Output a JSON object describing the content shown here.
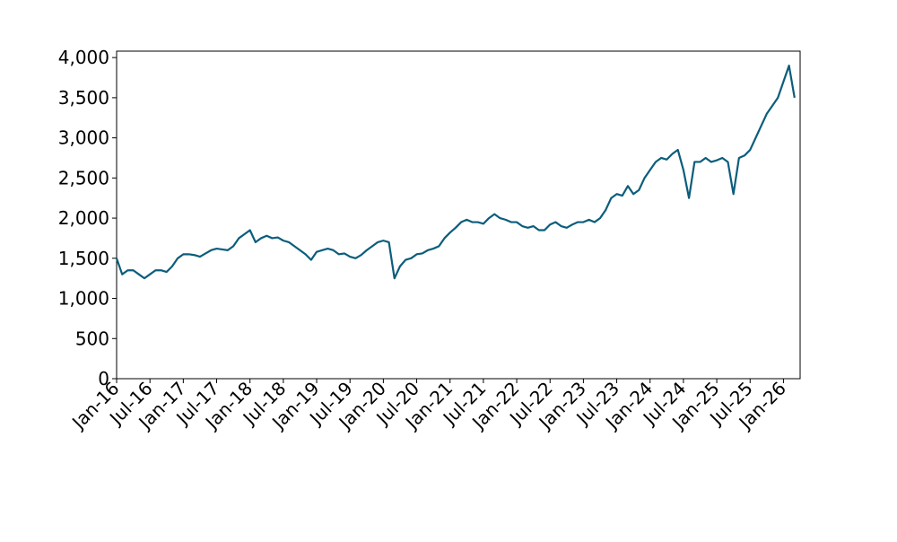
{
  "chart_data": {
    "type": "line",
    "x": [
      "2016-01",
      "2016-02",
      "2016-03",
      "2016-04",
      "2016-05",
      "2016-06",
      "2016-07",
      "2016-08",
      "2016-09",
      "2016-10",
      "2016-11",
      "2016-12",
      "2017-01",
      "2017-02",
      "2017-03",
      "2017-04",
      "2017-05",
      "2017-06",
      "2017-07",
      "2017-08",
      "2017-09",
      "2017-10",
      "2017-11",
      "2017-12",
      "2018-01",
      "2018-02",
      "2018-03",
      "2018-04",
      "2018-05",
      "2018-06",
      "2018-07",
      "2018-08",
      "2018-09",
      "2018-10",
      "2018-11",
      "2018-12",
      "2019-01",
      "2019-02",
      "2019-03",
      "2019-04",
      "2019-05",
      "2019-06",
      "2019-07",
      "2019-08",
      "2019-09",
      "2019-10",
      "2019-11",
      "2019-12",
      "2020-01",
      "2020-02",
      "2020-03",
      "2020-04",
      "2020-05",
      "2020-06",
      "2020-07",
      "2020-08",
      "2020-09",
      "2020-10",
      "2020-11",
      "2020-12",
      "2021-01",
      "2021-02",
      "2021-03",
      "2021-04",
      "2021-05",
      "2021-06",
      "2021-07",
      "2021-08",
      "2021-09",
      "2021-10",
      "2021-11",
      "2021-12",
      "2022-01",
      "2022-02",
      "2022-03",
      "2022-04",
      "2022-05",
      "2022-06",
      "2022-07",
      "2022-08",
      "2022-09",
      "2022-10",
      "2022-11",
      "2022-12",
      "2023-01",
      "2023-02",
      "2023-03",
      "2023-04",
      "2023-05",
      "2023-06",
      "2023-07",
      "2023-08",
      "2023-09",
      "2023-10",
      "2023-11",
      "2023-12",
      "2024-01",
      "2024-02",
      "2024-03",
      "2024-04",
      "2024-05",
      "2024-06",
      "2024-07",
      "2024-08",
      "2024-09",
      "2024-10",
      "2024-11",
      "2024-12",
      "2025-01",
      "2025-02",
      "2025-03",
      "2025-04",
      "2025-05",
      "2025-06",
      "2025-07",
      "2025-08",
      "2025-09",
      "2025-10",
      "2025-11",
      "2025-12",
      "2026-01",
      "2026-02",
      "2026-03"
    ],
    "series": [
      {
        "color": "#0b5d7c",
        "values": [
          1500,
          1300,
          1350,
          1350,
          1300,
          1250,
          1300,
          1350,
          1350,
          1330,
          1400,
          1500,
          1550,
          1550,
          1540,
          1520,
          1560,
          1600,
          1620,
          1610,
          1600,
          1650,
          1750,
          1800,
          1850,
          1700,
          1750,
          1780,
          1750,
          1760,
          1720,
          1700,
          1650,
          1600,
          1550,
          1480,
          1580,
          1600,
          1620,
          1600,
          1550,
          1560,
          1520,
          1500,
          1540,
          1600,
          1650,
          1700,
          1720,
          1700,
          1250,
          1400,
          1480,
          1500,
          1550,
          1560,
          1600,
          1620,
          1650,
          1750,
          1820,
          1880,
          1950,
          1980,
          1950,
          1950,
          1930,
          2000,
          2050,
          2000,
          1980,
          1950,
          1950,
          1900,
          1880,
          1900,
          1850,
          1850,
          1920,
          1950,
          1900,
          1880,
          1920,
          1950,
          1950,
          1980,
          1950,
          2000,
          2100,
          2250,
          2300,
          2280,
          2400,
          2300,
          2350,
          2500,
          2600,
          2700,
          2750,
          2730,
          2800,
          2850,
          2600,
          2250,
          2700,
          2700,
          2750,
          2700,
          2720,
          2750,
          2700,
          2300,
          2750,
          2780,
          2850,
          3000,
          3150,
          3300,
          3400,
          3500,
          3700,
          3900,
          3500
        ]
      }
    ],
    "xlim": [
      "2016-01",
      "2026-04"
    ],
    "xticks": [
      {
        "value": "2016-01",
        "label": "Jan-16"
      },
      {
        "value": "2016-07",
        "label": "Jul-16"
      },
      {
        "value": "2017-01",
        "label": "Jan-17"
      },
      {
        "value": "2017-07",
        "label": "Jul-17"
      },
      {
        "value": "2018-01",
        "label": "Jan-18"
      },
      {
        "value": "2018-07",
        "label": "Jul-18"
      },
      {
        "value": "2019-01",
        "label": "Jan-19"
      },
      {
        "value": "2019-07",
        "label": "Jul-19"
      },
      {
        "value": "2020-01",
        "label": "Jan-20"
      },
      {
        "value": "2020-07",
        "label": "Jul-20"
      },
      {
        "value": "2021-01",
        "label": "Jan-21"
      },
      {
        "value": "2021-07",
        "label": "Jul-21"
      },
      {
        "value": "2022-01",
        "label": "Jan-22"
      },
      {
        "value": "2022-07",
        "label": "Jul-22"
      },
      {
        "value": "2023-01",
        "label": "Jan-23"
      },
      {
        "value": "2023-07",
        "label": "Jul-23"
      },
      {
        "value": "2024-01",
        "label": "Jan-24"
      },
      {
        "value": "2024-07",
        "label": "Jul-24"
      },
      {
        "value": "2025-01",
        "label": "Jan-25"
      },
      {
        "value": "2025-07",
        "label": "Jul-25"
      },
      {
        "value": "2026-01",
        "label": "Jan-26"
      }
    ],
    "ylim": [
      0,
      4080
    ],
    "yticks": [
      0,
      {
        "value": 500,
        "label": "500"
      },
      {
        "value": 1000,
        "label": "1,000"
      },
      {
        "value": 1500,
        "label": "1,500"
      },
      {
        "value": 2000,
        "label": "2,000"
      },
      {
        "value": 2500,
        "label": "2,500"
      },
      {
        "value": 3000,
        "label": "3,000"
      },
      {
        "value": 3500,
        "label": "3,500"
      },
      {
        "value": 4000,
        "label": "4,000"
      }
    ],
    "grid": false
  }
}
